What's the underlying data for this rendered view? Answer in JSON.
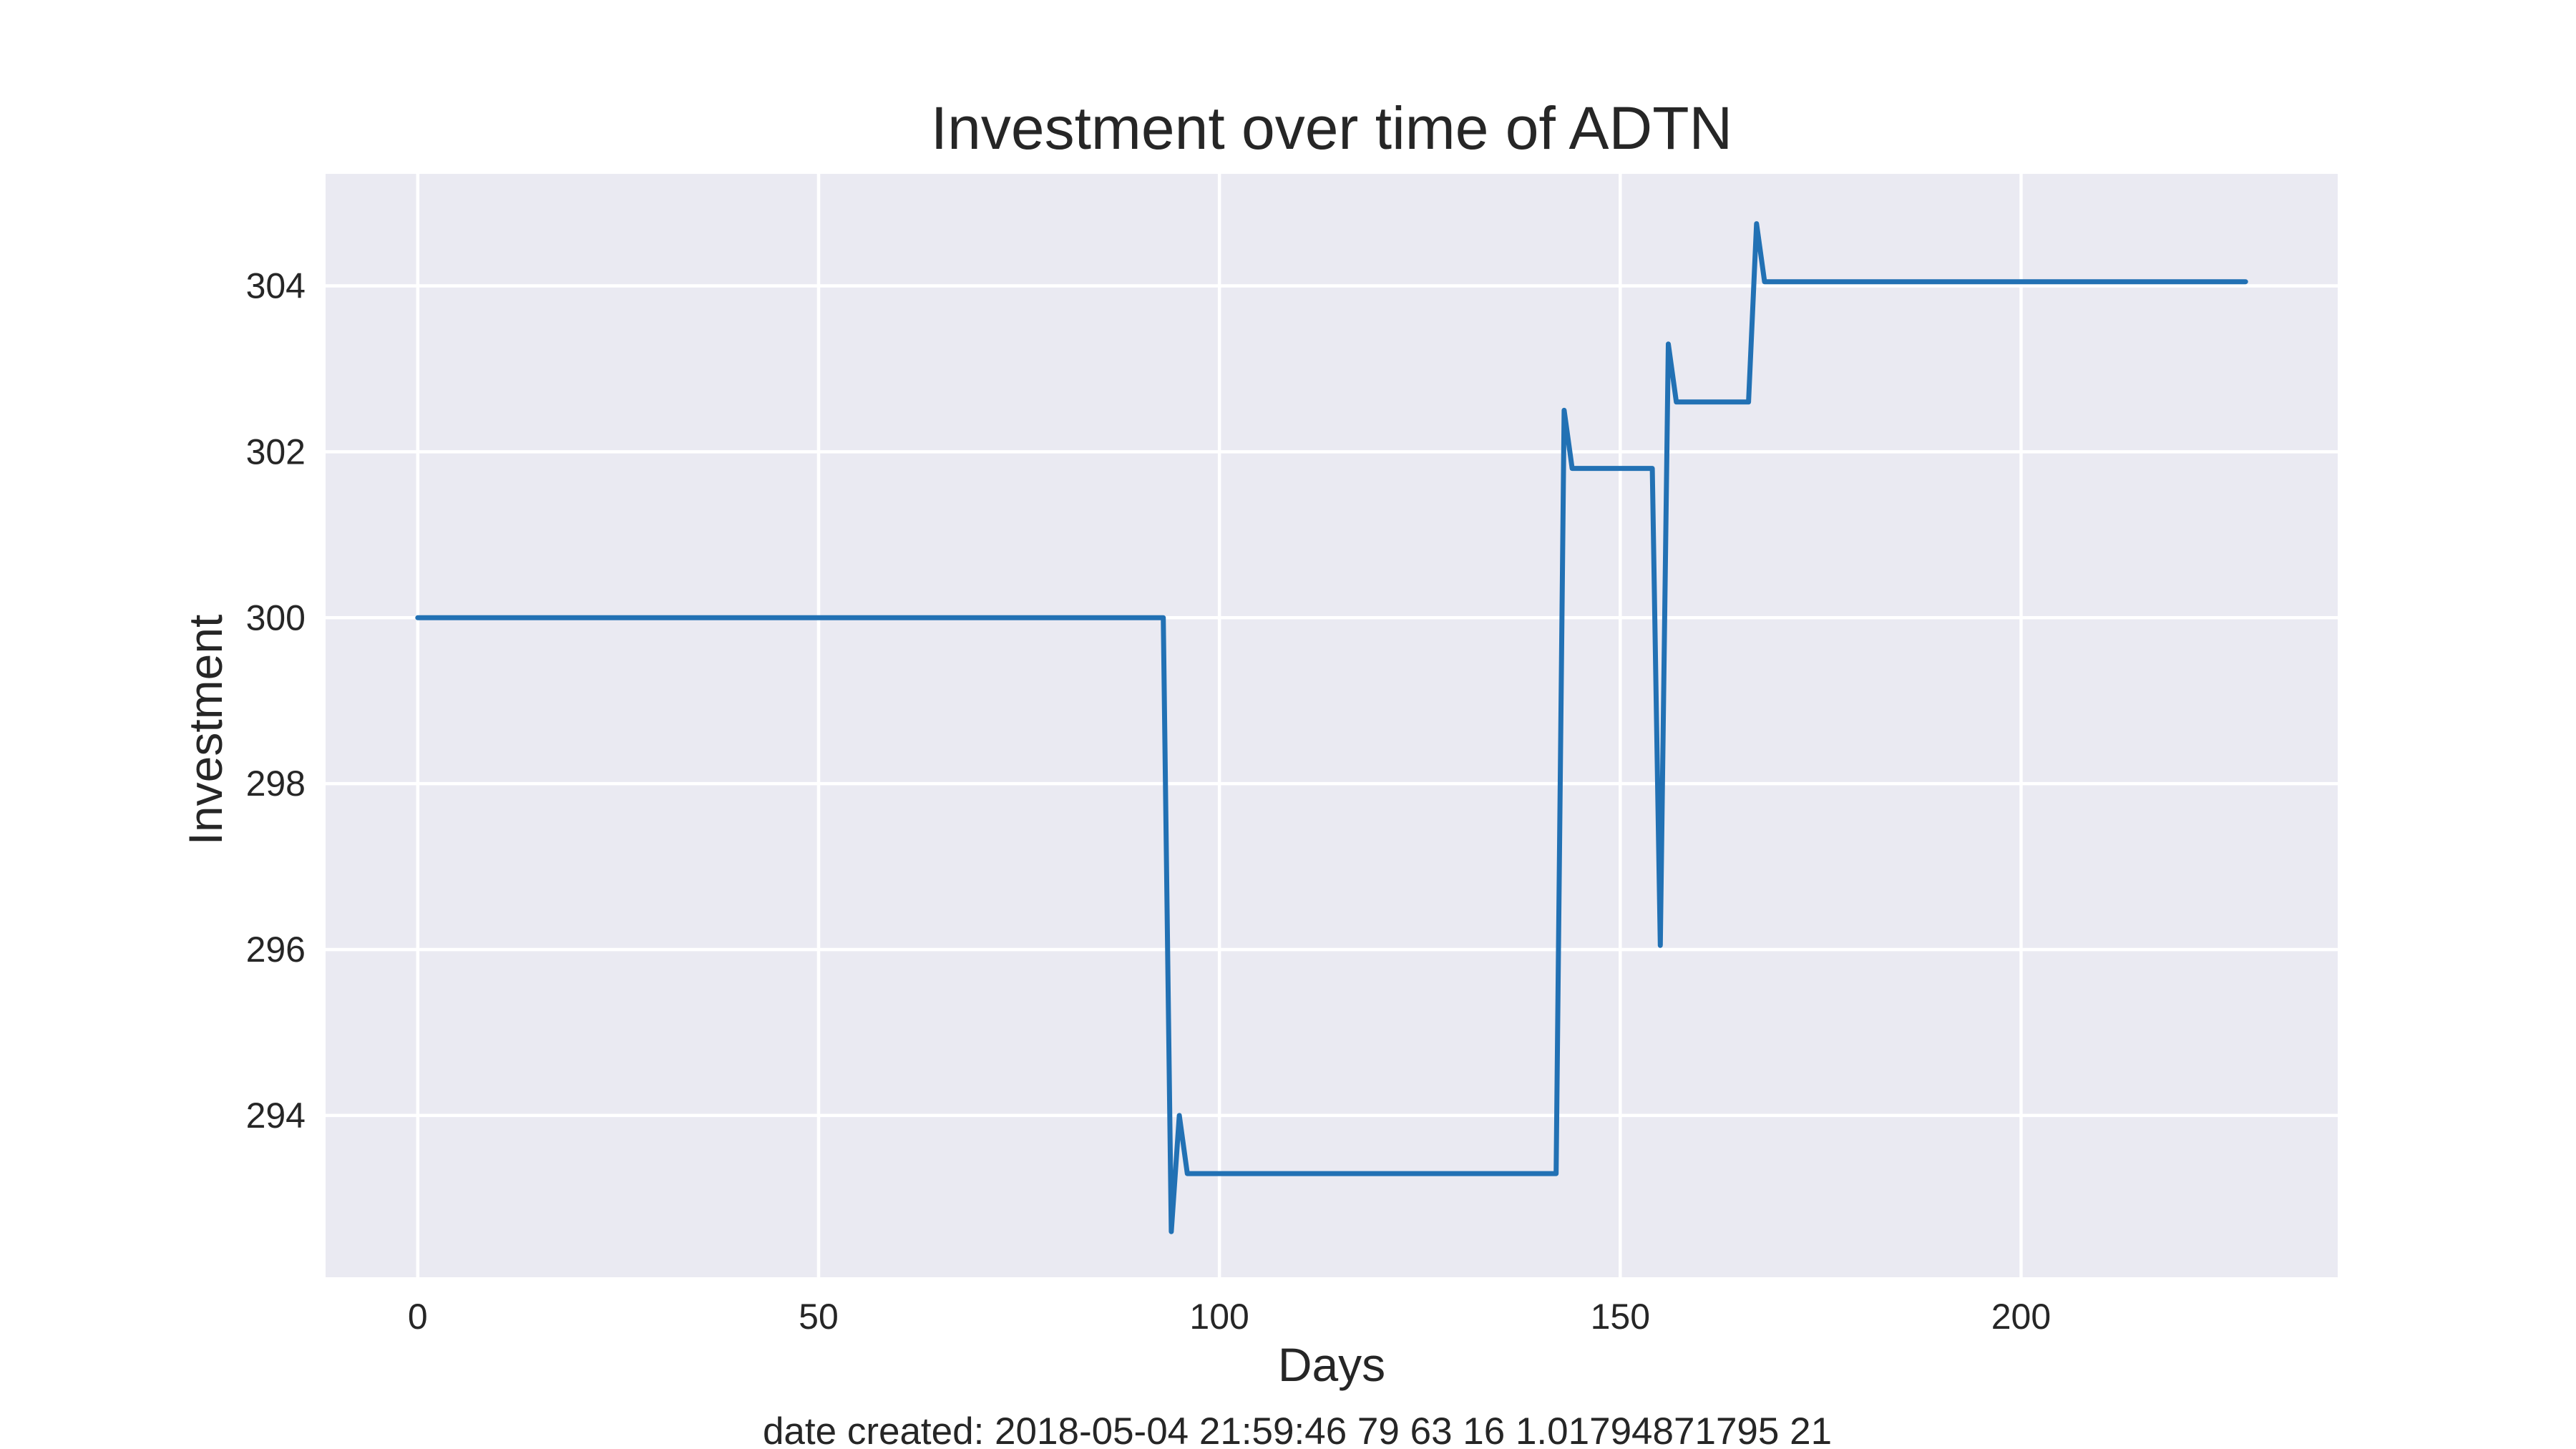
{
  "chart_data": {
    "type": "line",
    "title": "Investment over time of ADTN",
    "xlabel": "Days",
    "ylabel": "Investment",
    "footer": "date created: 2018-05-04 21:59:46 79 63 16 1.01794871795 21",
    "xlim": [
      -11.5,
      239.5
    ],
    "ylim": [
      292.05,
      305.35
    ],
    "xticks": [
      0,
      50,
      100,
      150,
      200
    ],
    "yticks": [
      294,
      296,
      298,
      300,
      302,
      304
    ],
    "xtick_labels": [
      "0",
      "50",
      "100",
      "150",
      "200"
    ],
    "ytick_labels": [
      "294",
      "296",
      "298",
      "300",
      "302",
      "304"
    ],
    "grid": true,
    "colors": {
      "background": "#eaeaf2",
      "grid": "#ffffff",
      "line": "#2271b4"
    },
    "series": [
      {
        "x": [
          0,
          93,
          94,
          95,
          96,
          142,
          143,
          144,
          154,
          155,
          156,
          157,
          166,
          167,
          168,
          228
        ],
        "y": [
          300.0,
          300.0,
          292.6,
          294.0,
          293.3,
          293.3,
          302.5,
          301.8,
          301.8,
          296.05,
          303.3,
          302.6,
          302.6,
          304.75,
          304.05,
          304.05
        ]
      }
    ]
  }
}
